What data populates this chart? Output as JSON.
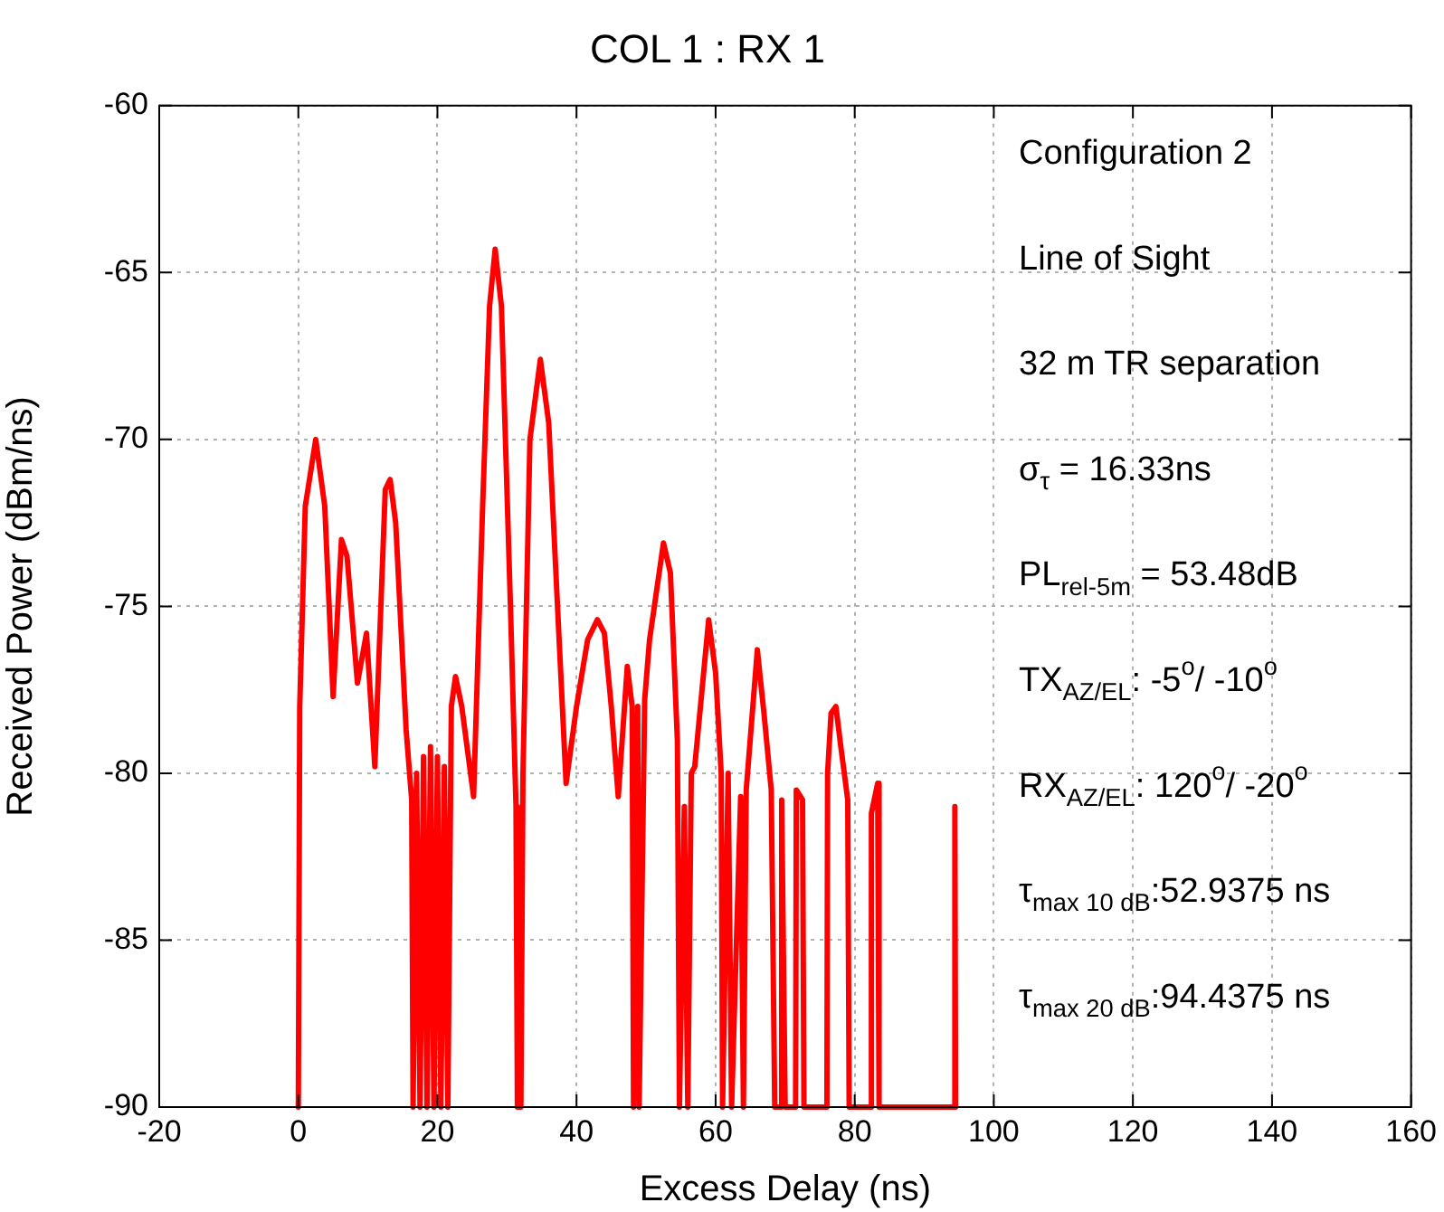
{
  "chart_data": {
    "type": "line",
    "title": "COL 1 : RX 1",
    "xlabel": "Excess Delay (ns)",
    "ylabel": "Received Power (dBm/ns)",
    "xlim": [
      -20,
      160
    ],
    "xticks": [
      -20,
      0,
      20,
      40,
      60,
      80,
      100,
      120,
      140,
      160
    ],
    "ylim": [
      -90,
      -60
    ],
    "yticks": [
      -90,
      -85,
      -80,
      -75,
      -70,
      -65,
      -60
    ],
    "grid": true,
    "legend": false,
    "marker": "none",
    "line_style": "solid",
    "x": [
      0,
      0.2,
      1,
      2.5,
      3.8,
      5,
      6.2,
      7,
      8.5,
      9.8,
      11,
      12.5,
      13.2,
      14,
      15.5,
      16.3,
      16.5,
      17,
      17.5,
      18,
      18.5,
      19,
      19.5,
      20,
      20.5,
      21,
      21.5,
      22,
      22.6,
      23.5,
      25.2,
      26.5,
      27.5,
      28.3,
      29.2,
      30.5,
      31.3,
      31.5,
      32,
      32.3,
      33.3,
      34.8,
      36,
      37.5,
      38.5,
      40,
      41.6,
      43,
      44,
      45,
      46,
      47.3,
      48,
      48.2,
      48.8,
      49,
      49.8,
      50.5,
      52.5,
      53.5,
      54.5,
      54.8,
      55.5,
      56,
      56.5,
      57,
      59,
      60,
      60.8,
      61,
      61.8,
      62.3,
      63.6,
      64,
      64.4,
      66,
      67,
      68,
      68.5,
      69.3,
      69.5,
      70,
      71.5,
      71.6,
      72.5,
      72.7,
      76,
      76.1,
      76.6,
      77.3,
      78,
      79,
      79.2,
      82.3,
      82.4,
      83.3,
      83.5,
      94.3,
      94.4,
      94.5
    ],
    "series": [
      {
        "color": "#ff0000",
        "values": [
          -90,
          -78,
          -72,
          -70,
          -72,
          -77.7,
          -73,
          -73.5,
          -77.3,
          -75.8,
          -79.8,
          -71.5,
          -71.2,
          -72.5,
          -78.7,
          -80.8,
          -90,
          -80,
          -90,
          -79.5,
          -90,
          -79.2,
          -90,
          -79.5,
          -90,
          -79.8,
          -90,
          -78,
          -77.1,
          -78,
          -80.7,
          -72,
          -66,
          -64.3,
          -66,
          -75,
          -81,
          -90,
          -90,
          -80,
          -70,
          -67.6,
          -69.5,
          -76,
          -80.3,
          -78,
          -76,
          -75.4,
          -75.8,
          -78,
          -80.7,
          -76.8,
          -78,
          -90,
          -78,
          -90,
          -77.8,
          -76,
          -73.1,
          -74,
          -79,
          -90,
          -81,
          -90,
          -80,
          -79.8,
          -75.4,
          -77,
          -80,
          -90,
          -80,
          -90,
          -80.7,
          -90,
          -80.5,
          -76.3,
          -78.3,
          -80.5,
          -90,
          -90,
          -80.8,
          -90,
          -90,
          -80.5,
          -80.8,
          -90,
          -90,
          -80,
          -78.2,
          -78,
          -79.2,
          -80.8,
          -90,
          -90,
          -81.2,
          -80.3,
          -90,
          -90,
          -81,
          -90
        ]
      }
    ],
    "annotations": [
      "Configuration 2",
      "Line of Sight",
      "32 m TR separation",
      "σ$_{τ}$ = 16.33ns",
      "PL$_{rel-5m}$ = 53.48dB",
      "TX$_{AZ/EL}$: -5$^{o}$/ -10$^{o}$",
      "RX$_{AZ/EL}$: 120$^{o}$/ -20$^{o}$",
      "τ$_{max 10 dB}$:52.9375 ns",
      "τ$_{max 20 dB}$:94.4375 ns"
    ]
  }
}
